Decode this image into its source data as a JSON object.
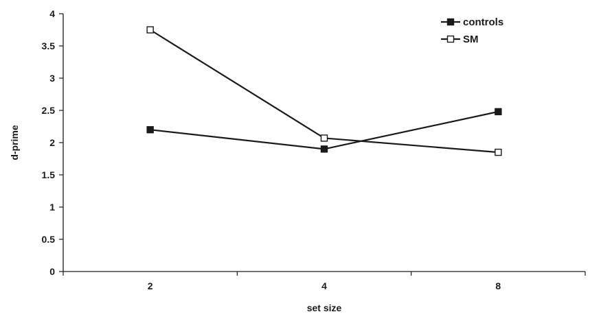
{
  "chart_data": {
    "type": "line",
    "title": "",
    "xlabel": "set size",
    "ylabel": "d-prime",
    "categories": [
      "2",
      "4",
      "8"
    ],
    "ylim": [
      0,
      4
    ],
    "yticks": [
      "0",
      "0.5",
      "1",
      "1.5",
      "2",
      "2.5",
      "3",
      "3.5",
      "4"
    ],
    "grid": false,
    "legend_position": "top-right",
    "series": [
      {
        "name": "controls",
        "values": [
          2.2,
          1.9,
          2.48
        ],
        "marker": "filled-square",
        "color": "#1a1a1a"
      },
      {
        "name": "SM",
        "values": [
          3.75,
          2.07,
          1.85
        ],
        "marker": "open-square",
        "color": "#1a1a1a"
      }
    ]
  }
}
